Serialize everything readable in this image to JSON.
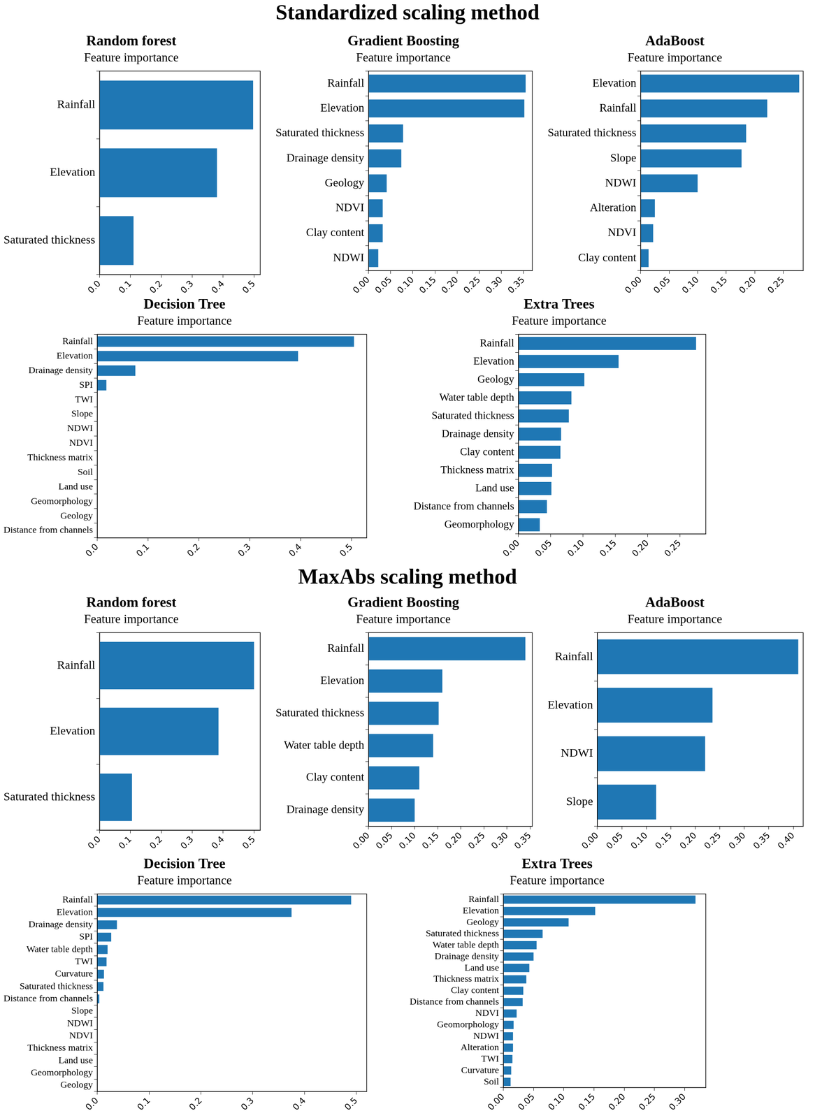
{
  "sections": [
    "Standardized scaling method",
    "MaxAbs scaling method"
  ],
  "chart_data": [
    {
      "type": "bar",
      "orientation": "horizontal",
      "title": "Random forest",
      "subtitle": "Feature importance",
      "color": "#1f77b4",
      "grid": false,
      "categories": [
        "Rainfall",
        "Elevation",
        "Saturated thickness"
      ],
      "values": [
        0.497,
        0.38,
        0.11
      ],
      "xlim": [
        0,
        0.52
      ],
      "xticks": [
        {
          "value": 0,
          "label": "0.0"
        },
        0.1,
        0.2,
        0.3,
        0.4,
        0.5
      ]
    },
    {
      "type": "bar",
      "orientation": "horizontal",
      "title": "Gradient Boosting",
      "subtitle": "Feature importance",
      "color": "#1f77b4",
      "grid": false,
      "categories": [
        "Rainfall",
        "Elevation",
        "Saturated thickness",
        "Drainage density",
        "Geology",
        "NDVI",
        "Clay content",
        "NDWI"
      ],
      "values": [
        0.355,
        0.352,
        0.078,
        0.074,
        0.041,
        0.032,
        0.032,
        0.022
      ],
      "xlim": [
        0,
        0.37
      ],
      "xticks": [
        {
          "value": 0,
          "label": "0.00"
        },
        0.05,
        {
          "value": 0.1,
          "label": "0.10"
        },
        0.15,
        {
          "value": 0.2,
          "label": "0.20"
        },
        0.25,
        {
          "value": 0.3,
          "label": "0.30"
        },
        0.35
      ]
    },
    {
      "type": "bar",
      "orientation": "horizontal",
      "title": "AdaBoost",
      "subtitle": "Feature importance",
      "color": "#1f77b4",
      "grid": false,
      "categories": [
        "Elevation",
        "Rainfall",
        "Saturated thickness",
        "Slope",
        "NDWI",
        "Alteration",
        "NDVI",
        "Clay content"
      ],
      "values": [
        0.278,
        0.222,
        0.185,
        0.177,
        0.1,
        0.025,
        0.022,
        0.014
      ],
      "xlim": [
        0,
        0.285
      ],
      "xticks": [
        {
          "value": 0,
          "label": "0.00"
        },
        0.05,
        {
          "value": 0.1,
          "label": "0.10"
        },
        0.15,
        {
          "value": 0.2,
          "label": "0.20"
        },
        0.25
      ]
    },
    {
      "type": "bar",
      "orientation": "horizontal",
      "title": "Decision Tree",
      "subtitle": "Feature importance",
      "color": "#1f77b4",
      "grid": false,
      "categories": [
        "Rainfall",
        "Elevation",
        "Drainage density",
        "SPI",
        "TWI",
        "Slope",
        "NDWI",
        "NDVI",
        "Thickness matrix",
        "Soil",
        "Land use",
        "Geomorphology",
        "Geology",
        "Distance from channels"
      ],
      "values": [
        0.505,
        0.395,
        0.075,
        0.018,
        0,
        0,
        0,
        0,
        0,
        0,
        0,
        0,
        0,
        0
      ],
      "xlim": [
        0,
        0.53
      ],
      "xticks": [
        {
          "value": 0,
          "label": "0.0"
        },
        0.1,
        0.2,
        0.3,
        0.4,
        0.5
      ]
    },
    {
      "type": "bar",
      "orientation": "horizontal",
      "title": "Extra Trees",
      "subtitle": "Feature importance",
      "color": "#1f77b4",
      "grid": false,
      "categories": [
        "Rainfall",
        "Elevation",
        "Geology",
        "Water table depth",
        "Saturated thickness",
        "Drainage density",
        "Clay content",
        "Thickness matrix",
        "Land use",
        "Distance from channels",
        "Geomorphology"
      ],
      "values": [
        0.275,
        0.155,
        0.102,
        0.082,
        0.078,
        0.066,
        0.065,
        0.052,
        0.051,
        0.044,
        0.033
      ],
      "xlim": [
        0,
        0.29
      ],
      "xticks": [
        {
          "value": 0,
          "label": "0.00"
        },
        0.05,
        {
          "value": 0.1,
          "label": "0.10"
        },
        0.15,
        {
          "value": 0.2,
          "label": "0.20"
        },
        0.25
      ]
    },
    {
      "type": "bar",
      "orientation": "horizontal",
      "title": "Random forest",
      "subtitle": "Feature importance",
      "color": "#1f77b4",
      "grid": false,
      "categories": [
        "Rainfall",
        "Elevation",
        "Saturated thickness"
      ],
      "values": [
        0.5,
        0.385,
        0.105
      ],
      "xlim": [
        0,
        0.52
      ],
      "xticks": [
        {
          "value": 0,
          "label": "0.0"
        },
        0.1,
        0.2,
        0.3,
        0.4,
        0.5
      ]
    },
    {
      "type": "bar",
      "orientation": "horizontal",
      "title": "Gradient Boosting",
      "subtitle": "Feature importance",
      "color": "#1f77b4",
      "grid": false,
      "categories": [
        "Rainfall",
        "Elevation",
        "Saturated thickness",
        "Water table depth",
        "Clay content",
        "Drainage density"
      ],
      "values": [
        0.34,
        0.16,
        0.152,
        0.14,
        0.11,
        0.1
      ],
      "xlim": [
        0,
        0.355
      ],
      "xticks": [
        {
          "value": 0,
          "label": "0.00"
        },
        0.05,
        {
          "value": 0.1,
          "label": "0.10"
        },
        0.15,
        {
          "value": 0.2,
          "label": "0.20"
        },
        0.25,
        {
          "value": 0.3,
          "label": "0.30"
        },
        0.35
      ]
    },
    {
      "type": "bar",
      "orientation": "horizontal",
      "title": "AdaBoost",
      "subtitle": "Feature importance",
      "color": "#1f77b4",
      "grid": false,
      "categories": [
        "Rainfall",
        "Elevation",
        "NDWI",
        "Slope"
      ],
      "values": [
        0.41,
        0.235,
        0.22,
        0.12
      ],
      "xlim": [
        0,
        0.42
      ],
      "xticks": [
        {
          "value": 0,
          "label": "0.00"
        },
        0.05,
        {
          "value": 0.1,
          "label": "0.10"
        },
        0.15,
        {
          "value": 0.2,
          "label": "0.20"
        },
        0.25,
        {
          "value": 0.3,
          "label": "0.30"
        },
        0.35,
        {
          "value": 0.4,
          "label": "0.40"
        }
      ]
    },
    {
      "type": "bar",
      "orientation": "horizontal",
      "title": "Decision Tree",
      "subtitle": "Feature importance",
      "color": "#1f77b4",
      "grid": false,
      "categories": [
        "Rainfall",
        "Elevation",
        "Drainage density",
        "SPI",
        "Water table depth",
        "TWI",
        "Curvature",
        "Saturated thickness",
        "Distance from channels",
        "Slope",
        "NDWI",
        "NDVI",
        "Thickness matrix",
        "Land use",
        "Geomorphology",
        "Geology"
      ],
      "values": [
        0.49,
        0.375,
        0.038,
        0.027,
        0.02,
        0.018,
        0.013,
        0.012,
        0.004,
        0,
        0,
        0,
        0,
        0,
        0,
        0
      ],
      "xlim": [
        0,
        0.52
      ],
      "xticks": [
        {
          "value": 0,
          "label": "0.0"
        },
        0.1,
        0.2,
        0.3,
        0.4,
        0.5
      ]
    },
    {
      "type": "bar",
      "orientation": "horizontal",
      "title": "Extra Trees",
      "subtitle": "Feature importance",
      "color": "#1f77b4",
      "grid": false,
      "categories": [
        "Rainfall",
        "Elevation",
        "Geology",
        "Saturated thickness",
        "Water table depth",
        "Drainage density",
        "Land use",
        "Thickness matrix",
        "Clay content",
        "Distance from channels",
        "NDVI",
        "Geomorphology",
        "NDWI",
        "Alteration",
        "TWI",
        "Curvature",
        "Soil"
      ],
      "values": [
        0.318,
        0.152,
        0.108,
        0.065,
        0.055,
        0.05,
        0.043,
        0.038,
        0.033,
        0.032,
        0.022,
        0.017,
        0.016,
        0.016,
        0.015,
        0.013,
        0.012
      ],
      "xlim": [
        0,
        0.335
      ],
      "xticks": [
        {
          "value": 0,
          "label": "0.00"
        },
        0.05,
        {
          "value": 0.1,
          "label": "0.10"
        },
        0.15,
        {
          "value": 0.2,
          "label": "0.20"
        },
        0.25,
        {
          "value": 0.3,
          "label": "0.30"
        }
      ]
    }
  ]
}
